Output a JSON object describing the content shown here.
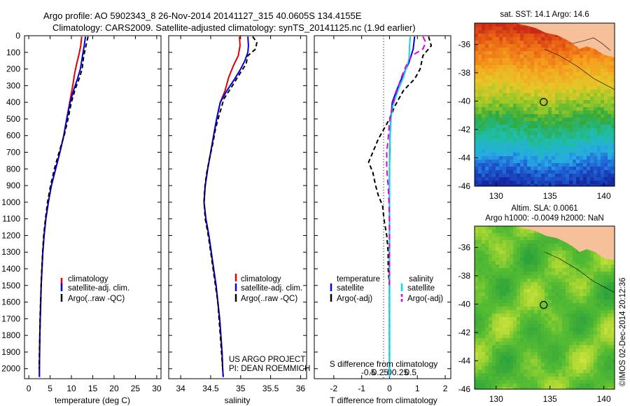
{
  "header": {
    "title_line1": "Argo profile: AO 5902343_8 26-Nov-2014 20141127_315 40.0605S 134.4155E",
    "title_line2": "Climatology: CARS2009. Satellite-adjusted climatology: synTS_20141125.nc (1.9d earlier)"
  },
  "watermark": "©IMOS 02-Dec-2014 20:12:36",
  "chart_data": [
    {
      "id": "temperature",
      "type": "line",
      "xlabel": "temperature (deg C)",
      "ylabel": "",
      "xlim": [
        -1,
        31
      ],
      "ylim": [
        2060,
        0
      ],
      "xticks": [
        "0",
        "5",
        "10",
        "15",
        "20",
        "25",
        "30"
      ],
      "yticks": [
        "0",
        "100",
        "200",
        "300",
        "400",
        "500",
        "600",
        "700",
        "800",
        "900",
        "1000",
        "1100",
        "1200",
        "1300",
        "1400",
        "1500",
        "1600",
        "1700",
        "1800",
        "1900",
        "2000"
      ],
      "legend": [
        "climatology",
        "satellite-adj. clim.",
        "Argo(..raw -QC)"
      ],
      "legend_position": "lower-left",
      "series": [
        {
          "name": "climatology",
          "color": "#e00000",
          "dash": "",
          "points": [
            [
              12.4,
              5
            ],
            [
              12.2,
              60
            ],
            [
              11.7,
              120
            ],
            [
              11.3,
              160
            ],
            [
              10.8,
              220
            ],
            [
              10.3,
              300
            ],
            [
              9.6,
              400
            ],
            [
              8.9,
              500
            ],
            [
              8.2,
              600
            ],
            [
              7.3,
              700
            ],
            [
              6.3,
              800
            ],
            [
              5.3,
              900
            ],
            [
              4.6,
              1000
            ],
            [
              4.0,
              1100
            ],
            [
              3.6,
              1200
            ],
            [
              3.3,
              1300
            ],
            [
              3.1,
              1400
            ],
            [
              2.9,
              1500
            ],
            [
              2.8,
              1600
            ],
            [
              2.7,
              1700
            ],
            [
              2.6,
              1800
            ],
            [
              2.55,
              1900
            ],
            [
              2.5,
              2000
            ],
            [
              2.5,
              2050
            ]
          ]
        },
        {
          "name": "satellite-adj. clim.",
          "color": "#0000e0",
          "dash": "",
          "points": [
            [
              13.3,
              5
            ],
            [
              13.0,
              60
            ],
            [
              12.6,
              120
            ],
            [
              12.1,
              200
            ],
            [
              11.4,
              260
            ],
            [
              10.6,
              320
            ],
            [
              9.7,
              400
            ],
            [
              8.9,
              500
            ],
            [
              8.2,
              600
            ],
            [
              7.3,
              700
            ],
            [
              6.3,
              800
            ],
            [
              5.3,
              900
            ],
            [
              4.6,
              1000
            ],
            [
              4.0,
              1100
            ],
            [
              3.6,
              1200
            ],
            [
              3.3,
              1300
            ],
            [
              3.1,
              1400
            ],
            [
              2.9,
              1500
            ],
            [
              2.8,
              1600
            ],
            [
              2.7,
              1700
            ],
            [
              2.6,
              1800
            ],
            [
              2.55,
              1900
            ],
            [
              2.5,
              2000
            ],
            [
              2.5,
              2050
            ]
          ]
        },
        {
          "name": "Argo(..raw -QC)",
          "color": "#000000",
          "dash": "6,4",
          "points": [
            [
              13.9,
              5
            ],
            [
              13.4,
              60
            ],
            [
              12.9,
              120
            ],
            [
              12.5,
              200
            ],
            [
              11.8,
              260
            ],
            [
              10.9,
              320
            ],
            [
              10.0,
              400
            ],
            [
              9.2,
              500
            ],
            [
              8.3,
              600
            ],
            [
              7.1,
              700
            ],
            [
              6.0,
              800
            ],
            [
              5.1,
              900
            ],
            [
              4.4,
              1000
            ],
            [
              3.9,
              1100
            ],
            [
              3.5,
              1200
            ],
            [
              3.25,
              1300
            ],
            [
              3.05,
              1400
            ],
            [
              2.9,
              1500
            ],
            [
              2.75,
              1600
            ],
            [
              2.65,
              1700
            ],
            [
              2.6,
              1800
            ],
            [
              2.5,
              1900
            ],
            [
              2.45,
              2000
            ]
          ]
        }
      ]
    },
    {
      "id": "salinity",
      "type": "line",
      "xlabel": "salinity",
      "ylabel": "",
      "xlim": [
        33.8,
        36.1
      ],
      "ylim": [
        2060,
        0
      ],
      "xticks": [
        "34",
        "34.5",
        "35",
        "35.5",
        "36"
      ],
      "legend": [
        "climatology",
        "satellite-adj. clim.",
        "Argo(..raw -QC)"
      ],
      "legend_position": "lower-right",
      "annotation": [
        "US ARGO PROJECT",
        "PI: DEAN ROEMMICH"
      ],
      "series": [
        {
          "name": "climatology",
          "color": "#e00000",
          "dash": "",
          "points": [
            [
              34.98,
              5
            ],
            [
              34.99,
              60
            ],
            [
              34.96,
              120
            ],
            [
              34.88,
              180
            ],
            [
              34.8,
              250
            ],
            [
              34.74,
              330
            ],
            [
              34.66,
              400
            ],
            [
              34.6,
              500
            ],
            [
              34.55,
              600
            ],
            [
              34.5,
              700
            ],
            [
              34.45,
              800
            ],
            [
              34.41,
              900
            ],
            [
              34.39,
              1000
            ],
            [
              34.42,
              1100
            ],
            [
              34.47,
              1200
            ],
            [
              34.51,
              1300
            ],
            [
              34.55,
              1400
            ],
            [
              34.59,
              1500
            ],
            [
              34.62,
              1600
            ],
            [
              34.65,
              1700
            ],
            [
              34.67,
              1800
            ],
            [
              34.69,
              1900
            ],
            [
              34.7,
              2000
            ],
            [
              34.71,
              2050
            ]
          ]
        },
        {
          "name": "satellite-adj. clim.",
          "color": "#0000e0",
          "dash": "",
          "points": [
            [
              35.12,
              5
            ],
            [
              35.13,
              60
            ],
            [
              35.12,
              100
            ],
            [
              35.07,
              150
            ],
            [
              35.0,
              200
            ],
            [
              34.9,
              260
            ],
            [
              34.77,
              330
            ],
            [
              34.66,
              400
            ],
            [
              34.6,
              500
            ],
            [
              34.55,
              600
            ],
            [
              34.5,
              700
            ],
            [
              34.45,
              800
            ],
            [
              34.41,
              900
            ],
            [
              34.39,
              1000
            ],
            [
              34.42,
              1100
            ],
            [
              34.47,
              1200
            ],
            [
              34.51,
              1300
            ],
            [
              34.55,
              1400
            ],
            [
              34.59,
              1500
            ],
            [
              34.62,
              1600
            ],
            [
              34.65,
              1700
            ],
            [
              34.67,
              1800
            ],
            [
              34.69,
              1900
            ],
            [
              34.7,
              2000
            ],
            [
              34.71,
              2050
            ]
          ]
        },
        {
          "name": "Argo(..raw -QC)",
          "color": "#000000",
          "dash": "6,4",
          "points": [
            [
              35.2,
              5
            ],
            [
              35.27,
              40
            ],
            [
              35.25,
              80
            ],
            [
              35.12,
              120
            ],
            [
              35.09,
              170
            ],
            [
              35.0,
              220
            ],
            [
              34.88,
              290
            ],
            [
              34.72,
              380
            ],
            [
              34.64,
              480
            ],
            [
              34.58,
              560
            ],
            [
              34.54,
              640
            ],
            [
              34.48,
              740
            ],
            [
              34.43,
              830
            ],
            [
              34.4,
              920
            ],
            [
              34.39,
              1000
            ],
            [
              34.41,
              1100
            ],
            [
              34.46,
              1200
            ],
            [
              34.5,
              1300
            ],
            [
              34.54,
              1400
            ],
            [
              34.58,
              1500
            ],
            [
              34.62,
              1600
            ],
            [
              34.64,
              1700
            ],
            [
              34.66,
              1800
            ],
            [
              34.68,
              1900
            ],
            [
              34.7,
              2000
            ]
          ]
        }
      ]
    },
    {
      "id": "difference",
      "type": "line",
      "xlabel": "T difference from climatology",
      "x2label": "S difference from climatology",
      "ylabel": "",
      "xlim": [
        -2.7,
        2.2
      ],
      "ylim": [
        2060,
        0
      ],
      "xticks": [
        "-2",
        "-1",
        "0",
        "1",
        "2"
      ],
      "x2ticks": [
        "-0.5",
        "-0.25",
        "0",
        "0.25",
        "0.5"
      ],
      "legend_groups": [
        {
          "title": "temperature",
          "items": [
            "satellite",
            "Argo(-adj)"
          ]
        },
        {
          "title": "salinity",
          "items": [
            "satellite",
            "Argo(-adj)"
          ]
        }
      ],
      "series": [
        {
          "name": "temperature satellite",
          "color": "#0000e0",
          "dash": "",
          "points": [
            [
              0.9,
              5
            ],
            [
              0.85,
              80
            ],
            [
              0.7,
              160
            ],
            [
              0.45,
              250
            ],
            [
              0.25,
              330
            ],
            [
              0.1,
              400
            ],
            [
              0.05,
              500
            ],
            [
              0.02,
              600
            ],
            [
              0,
              800
            ],
            [
              0,
              1000
            ],
            [
              0,
              1500
            ],
            [
              0,
              2050
            ]
          ]
        },
        {
          "name": "temperature Argo(-adj)",
          "color": "#000000",
          "dash": "6,4",
          "points": [
            [
              1.4,
              5
            ],
            [
              1.5,
              60
            ],
            [
              1.2,
              120
            ],
            [
              1.1,
              200
            ],
            [
              0.9,
              260
            ],
            [
              0.5,
              330
            ],
            [
              0.2,
              420
            ],
            [
              0.0,
              500
            ],
            [
              -0.2,
              560
            ],
            [
              -0.4,
              620
            ],
            [
              -0.6,
              700
            ],
            [
              -0.75,
              760
            ],
            [
              -0.6,
              820
            ],
            [
              -0.5,
              900
            ],
            [
              -0.4,
              960
            ],
            [
              -0.25,
              1020
            ],
            [
              -0.2,
              1100
            ],
            [
              -0.1,
              1200
            ],
            [
              -0.05,
              1300
            ],
            [
              -0.05,
              1400
            ],
            [
              0,
              1500
            ],
            [
              0,
              2000
            ]
          ]
        },
        {
          "name": "salinity satellite",
          "color": "#00e0e0",
          "dash": "",
          "points": [
            [
              0.75,
              5
            ],
            [
              0.72,
              60
            ],
            [
              0.7,
              140
            ],
            [
              0.5,
              250
            ],
            [
              0.3,
              330
            ],
            [
              0.12,
              420
            ],
            [
              0.05,
              500
            ],
            [
              0,
              700
            ],
            [
              0,
              1000
            ],
            [
              0,
              2050
            ]
          ]
        },
        {
          "name": "salinity Argo(-adj)",
          "color": "#e000e0",
          "dash": "8,5",
          "points": [
            [
              1.2,
              5
            ],
            [
              1.3,
              40
            ],
            [
              1.2,
              80
            ],
            [
              0.8,
              120
            ],
            [
              0.6,
              180
            ],
            [
              0.4,
              260
            ],
            [
              0.25,
              340
            ],
            [
              0.1,
              420
            ],
            [
              0.0,
              520
            ],
            [
              -0.05,
              620
            ],
            [
              -0.1,
              700
            ],
            [
              -0.1,
              800
            ],
            [
              -0.05,
              900
            ],
            [
              -0.02,
              1000
            ],
            [
              0,
              1100
            ],
            [
              0,
              1300
            ],
            [
              0,
              1500
            ]
          ]
        }
      ]
    },
    {
      "id": "sst_map",
      "type": "heatmap",
      "title": "sat. SST: 14.1  Argo: 14.6",
      "xlim": [
        128,
        141
      ],
      "ylim": [
        -46,
        -34.5
      ],
      "xticks": [
        "130",
        "135",
        "140"
      ],
      "yticks": [
        "-36",
        "-38",
        "-40",
        "-42",
        "-44",
        "-46"
      ],
      "marker": {
        "lon": 134.4155,
        "lat": -40.0605
      }
    },
    {
      "id": "sla_map",
      "type": "heatmap",
      "title": "Altim. SLA: 0.0061",
      "subtitle": "Argo h1000: -0.0049 h2000: NaN",
      "xlim": [
        128,
        141
      ],
      "ylim": [
        -46,
        -34.5
      ],
      "xticks": [
        "130",
        "135",
        "140"
      ],
      "yticks": [
        "-36",
        "-38",
        "-40",
        "-42",
        "-44",
        "-46"
      ],
      "marker": {
        "lon": 134.4155,
        "lat": -40.0605
      }
    }
  ]
}
